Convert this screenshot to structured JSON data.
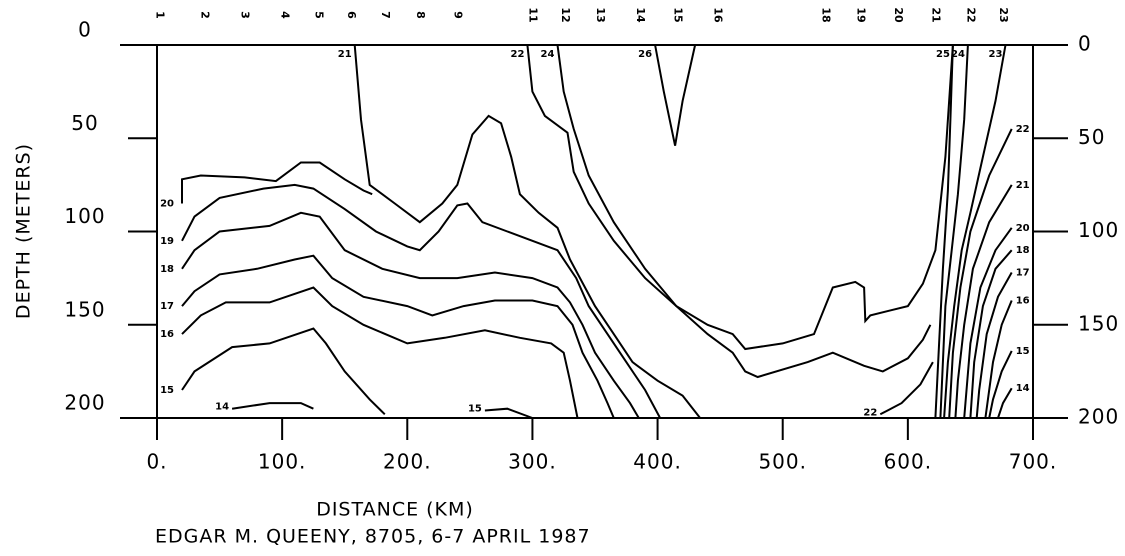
{
  "chart_data": {
    "type": "contour",
    "xlabel": "DISTANCE (KM)",
    "ylabel": "DEPTH (METERS)",
    "caption": "EDGAR M.  QUEENY, 8705,  6-7 APRIL 1987",
    "xlim": [
      0,
      700
    ],
    "xticks": [
      {
        "value": 0,
        "label": "0."
      },
      {
        "value": 100,
        "label": "100."
      },
      {
        "value": 200,
        "label": "200."
      },
      {
        "value": 300,
        "label": "300."
      },
      {
        "value": 400,
        "label": "400."
      },
      {
        "value": 500,
        "label": "500."
      },
      {
        "value": 600,
        "label": "600."
      },
      {
        "value": 700,
        "label": "700."
      }
    ],
    "ylim": [
      200,
      0
    ],
    "yticks": [
      0,
      50,
      100,
      150,
      200
    ],
    "y2lim": [
      200,
      0
    ],
    "y2ticks": [
      0,
      50,
      100,
      150,
      200
    ],
    "color": "#000000",
    "stations": {
      "labels": [
        "1",
        "2",
        "3",
        "4",
        "5",
        "6",
        "7",
        "8",
        "9",
        "11",
        "12",
        "13",
        "14",
        "15",
        "16",
        "18",
        "19",
        "20",
        "21",
        "22",
        "23"
      ],
      "x": [
        2,
        38,
        70,
        102,
        129,
        155,
        182,
        210,
        240,
        300,
        326,
        354,
        386,
        416,
        448,
        534,
        562,
        592,
        622,
        650,
        676
      ]
    },
    "contours": [
      {
        "label": "21",
        "x": [
          158,
          163,
          170,
          190,
          210,
          228,
          240,
          252,
          265,
          275,
          283,
          290,
          305,
          320,
          330,
          338,
          350,
          365,
          380,
          400,
          420,
          434
        ],
        "y": [
          0,
          40,
          75,
          85,
          95,
          85,
          75,
          48,
          38,
          42,
          60,
          80,
          90,
          98,
          115,
          125,
          140,
          155,
          170,
          180,
          188,
          200
        ]
      },
      {
        "label": "26",
        "x": [
          398,
          405,
          414,
          420,
          430
        ],
        "y": [
          0,
          25,
          54,
          30,
          0
        ]
      },
      {
        "label": "22",
        "x": [
          296,
          300,
          310,
          328,
          333,
          345,
          365,
          390,
          415,
          440,
          460,
          470,
          480,
          500,
          525,
          540,
          558,
          565,
          566,
          570,
          600,
          612,
          622,
          630,
          636
        ],
        "y": [
          0,
          25,
          38,
          47,
          68,
          85,
          105,
          125,
          140,
          150,
          155,
          163,
          162,
          160,
          155,
          130,
          127,
          130,
          148,
          145,
          140,
          128,
          110,
          60,
          0
        ]
      },
      {
        "label": "24",
        "x": [
          320,
          325,
          333,
          345,
          365,
          390,
          415,
          440,
          460,
          470,
          480,
          520,
          540,
          565,
          580,
          600,
          612,
          618
        ],
        "y": [
          0,
          25,
          45,
          70,
          95,
          120,
          140,
          155,
          165,
          175,
          178,
          170,
          165,
          172,
          175,
          168,
          158,
          150
        ]
      },
      {
        "label": "22",
        "x": [
          578,
          595,
          610,
          620
        ],
        "y": [
          198,
          192,
          182,
          170
        ]
      },
      {
        "label": "20",
        "x": [
          20,
          20,
          35,
          70,
          95,
          115,
          130,
          150,
          165,
          172
        ],
        "y": [
          85,
          72,
          70,
          71,
          73,
          63,
          63,
          72,
          78,
          80
        ]
      },
      {
        "label": "19",
        "x": [
          20,
          30,
          50,
          85,
          110,
          125,
          150,
          175,
          200,
          210,
          225,
          240,
          248,
          260,
          280,
          300,
          320,
          335,
          345,
          360,
          375,
          390,
          402
        ],
        "y": [
          105,
          92,
          82,
          77,
          75,
          77,
          88,
          100,
          108,
          110,
          100,
          86,
          85,
          95,
          100,
          105,
          110,
          125,
          140,
          155,
          170,
          185,
          200
        ]
      },
      {
        "label": "18",
        "x": [
          20,
          30,
          50,
          90,
          115,
          130,
          150,
          180,
          210,
          240,
          270,
          300,
          320,
          330,
          340,
          350,
          365,
          378,
          385
        ],
        "y": [
          120,
          110,
          100,
          97,
          90,
          92,
          110,
          120,
          125,
          125,
          122,
          125,
          130,
          138,
          150,
          165,
          180,
          192,
          200
        ]
      },
      {
        "label": "17",
        "x": [
          20,
          30,
          50,
          80,
          110,
          125,
          140,
          165,
          200,
          220,
          245,
          270,
          300,
          320,
          332,
          340,
          352,
          360,
          365
        ],
        "y": [
          140,
          132,
          123,
          120,
          115,
          113,
          125,
          135,
          140,
          145,
          140,
          137,
          137,
          140,
          150,
          165,
          180,
          192,
          200
        ]
      },
      {
        "label": "16",
        "x": [
          20,
          35,
          55,
          90,
          125,
          140,
          165,
          200,
          230,
          262,
          290,
          315,
          325,
          330,
          336
        ],
        "y": [
          155,
          145,
          138,
          138,
          130,
          140,
          150,
          160,
          157,
          153,
          157,
          160,
          165,
          180,
          200
        ]
      },
      {
        "label": "15",
        "x": [
          20,
          30,
          60,
          90,
          125,
          135,
          150,
          170,
          182
        ],
        "y": [
          185,
          175,
          162,
          160,
          152,
          160,
          175,
          190,
          198
        ]
      },
      {
        "label": "15",
        "x": [
          262,
          280,
          300
        ],
        "y": [
          196,
          195,
          200
        ]
      },
      {
        "label": "14",
        "x": [
          60,
          90,
          115,
          125
        ],
        "y": [
          195,
          192,
          192,
          195
        ]
      },
      {
        "label": "25",
        "x": [
          636,
          634,
          632,
          628,
          625,
          622
        ],
        "y": [
          0,
          40,
          78,
          120,
          160,
          200
        ]
      },
      {
        "label": "24",
        "x": [
          648,
          645,
          640,
          635,
          630,
          626
        ],
        "y": [
          0,
          40,
          80,
          110,
          140,
          200
        ]
      },
      {
        "label": "23",
        "x": [
          678,
          670,
          660,
          650,
          643,
          637,
          632,
          629
        ],
        "y": [
          0,
          30,
          60,
          90,
          110,
          140,
          170,
          200
        ]
      },
      {
        "label": "22",
        "x": [
          683,
          665,
          650,
          642,
          636,
          633
        ],
        "y": [
          45,
          70,
          100,
          130,
          165,
          200
        ]
      },
      {
        "label": "21",
        "x": [
          683,
          665,
          652,
          645,
          640,
          638
        ],
        "y": [
          75,
          95,
          120,
          150,
          180,
          200
        ]
      },
      {
        "label": "20",
        "x": [
          683,
          670,
          658,
          650,
          645
        ],
        "y": [
          98,
          110,
          130,
          160,
          200
        ]
      },
      {
        "label": "18",
        "x": [
          683,
          670,
          660,
          653,
          650
        ],
        "y": [
          110,
          120,
          140,
          170,
          200
        ]
      },
      {
        "label": "17",
        "x": [
          683,
          672,
          663,
          657,
          655
        ],
        "y": [
          122,
          135,
          155,
          185,
          200
        ]
      },
      {
        "label": "16",
        "x": [
          683,
          675,
          668,
          662
        ],
        "y": [
          137,
          150,
          170,
          200
        ]
      },
      {
        "label": "15",
        "x": [
          683,
          675,
          668,
          665
        ],
        "y": [
          164,
          175,
          190,
          200
        ]
      },
      {
        "label": "14",
        "x": [
          683,
          676,
          672
        ],
        "y": [
          184,
          192,
          200
        ]
      }
    ]
  }
}
